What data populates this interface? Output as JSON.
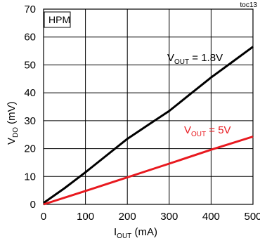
{
  "chart_data": {
    "type": "line",
    "figure_id": "toc13",
    "annotation_box": "HPM",
    "xlabel": {
      "main": "I",
      "sub": "OUT",
      "unit": " (mA)"
    },
    "ylabel": {
      "main": "V",
      "sub": "DO",
      "unit": " (mV)"
    },
    "xlim": [
      0,
      500
    ],
    "ylim": [
      0,
      70
    ],
    "xticks": [
      0,
      100,
      200,
      300,
      400,
      500
    ],
    "yticks": [
      0,
      10,
      20,
      30,
      40,
      50,
      60,
      70
    ],
    "grid": true,
    "series": [
      {
        "name": "VOUT = 1.8V",
        "label": {
          "main": "V",
          "sub": "OUT",
          "rest": " = 1.8V"
        },
        "color": "#000000",
        "x": [
          0,
          50,
          100,
          150,
          200,
          250,
          300,
          350,
          400,
          450,
          500
        ],
        "y": [
          0.5,
          5.8,
          11.5,
          17.5,
          23.5,
          28.5,
          33.5,
          39.5,
          45.5,
          51,
          56.5
        ]
      },
      {
        "name": "VOUT = 5V",
        "label": {
          "main": "V",
          "sub": "OUT",
          "rest": " = 5V"
        },
        "color": "#e8191f",
        "x": [
          0,
          100,
          200,
          300,
          400,
          500
        ],
        "y": [
          0,
          4.8,
          9.7,
          14.6,
          19.6,
          24.3
        ]
      }
    ]
  }
}
